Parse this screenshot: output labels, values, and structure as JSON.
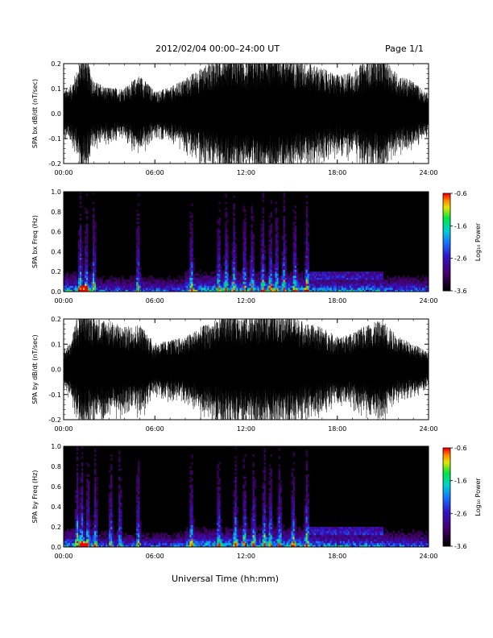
{
  "header": {
    "title": "2012/02/04  00:00–24:00 UT",
    "page": "Page 1/1"
  },
  "xlabel": "Universal Time (hh:mm)",
  "chart_data": [
    {
      "type": "line",
      "name": "bx-waveform",
      "ylabel": "SPA bx dB/dt (nT/sec)",
      "xticks": [
        "00:00",
        "06:00",
        "12:00",
        "18:00",
        "24:00"
      ],
      "yticks": [
        "0.2",
        "0.1",
        "0.0",
        "-0.1",
        "-0.2"
      ],
      "ylim": [
        -0.2,
        0.2
      ],
      "xlim_hours": [
        0,
        24
      ],
      "envelope": {
        "hours": [
          0,
          0.5,
          1.0,
          1.3,
          1.6,
          2.0,
          3.0,
          4.0,
          5.0,
          6.0,
          7.0,
          8.0,
          9.0,
          10.0,
          11.0,
          12.0,
          13.0,
          14.0,
          15.0,
          16.0,
          17.0,
          18.0,
          19.0,
          20.0,
          21.0,
          22.0,
          23.0,
          24.0
        ],
        "amplitude": [
          0.07,
          0.09,
          0.15,
          0.2,
          0.16,
          0.1,
          0.08,
          0.08,
          0.12,
          0.07,
          0.08,
          0.11,
          0.14,
          0.17,
          0.2,
          0.16,
          0.19,
          0.2,
          0.18,
          0.16,
          0.14,
          0.12,
          0.13,
          0.17,
          0.18,
          0.12,
          0.1,
          0.06
        ]
      }
    },
    {
      "type": "heatmap",
      "name": "bx-spectrogram",
      "ylabel": "SPA bx Freq (Hz)",
      "xticks": [
        "00:00",
        "06:00",
        "12:00",
        "18:00",
        "24:00"
      ],
      "yticks": [
        "1.0",
        "0.8",
        "0.6",
        "0.4",
        "0.2",
        "0.0"
      ],
      "ylim": [
        0,
        1.0
      ],
      "colorbar": {
        "label": "Log₁₀ Power",
        "ticks": [
          "-0.6",
          "-1.6",
          "-2.6",
          "-3.6"
        ],
        "range": [
          -3.6,
          -0.6
        ]
      },
      "burst_hours": [
        1.1,
        1.5,
        2.0,
        4.9,
        8.4,
        10.2,
        10.7,
        11.2,
        11.9,
        12.4,
        13.1,
        13.6,
        14.0,
        14.5,
        15.2,
        16.0
      ]
    },
    {
      "type": "line",
      "name": "by-waveform",
      "ylabel": "SPA by dB/dt (nT/sec)",
      "xticks": [
        "00:00",
        "06:00",
        "12:00",
        "18:00",
        "24:00"
      ],
      "yticks": [
        "0.2",
        "0.1",
        "0.0",
        "-0.1",
        "-0.2"
      ],
      "ylim": [
        -0.2,
        0.2
      ],
      "xlim_hours": [
        0,
        24
      ],
      "envelope": {
        "hours": [
          0,
          0.5,
          1.0,
          1.3,
          1.6,
          2.0,
          3.0,
          4.0,
          5.0,
          6.0,
          7.0,
          8.0,
          9.0,
          10.0,
          11.0,
          12.0,
          13.0,
          14.0,
          15.0,
          16.0,
          17.0,
          18.0,
          19.0,
          20.0,
          21.0,
          22.0,
          23.0,
          24.0
        ],
        "amplitude": [
          0.06,
          0.09,
          0.18,
          0.2,
          0.19,
          0.16,
          0.15,
          0.13,
          0.14,
          0.08,
          0.09,
          0.1,
          0.13,
          0.15,
          0.19,
          0.16,
          0.18,
          0.19,
          0.17,
          0.14,
          0.13,
          0.1,
          0.11,
          0.14,
          0.15,
          0.1,
          0.08,
          0.05
        ]
      }
    },
    {
      "type": "heatmap",
      "name": "by-spectrogram",
      "ylabel": "SPA by Freq (Hz)",
      "xticks": [
        "00:00",
        "06:00",
        "12:00",
        "18:00",
        "24:00"
      ],
      "yticks": [
        "1.0",
        "0.8",
        "0.6",
        "0.4",
        "0.2",
        "0.0"
      ],
      "ylim": [
        0,
        1.0
      ],
      "colorbar": {
        "label": "Log₁₀ Power",
        "ticks": [
          "-0.6",
          "-1.6",
          "-2.6",
          "-3.6"
        ],
        "range": [
          -3.6,
          -0.6
        ]
      },
      "burst_hours": [
        0.9,
        1.2,
        1.6,
        2.1,
        3.1,
        3.7,
        4.9,
        8.4,
        10.2,
        11.3,
        11.9,
        12.5,
        13.2,
        13.6,
        14.2,
        15.1,
        16.0
      ]
    }
  ]
}
